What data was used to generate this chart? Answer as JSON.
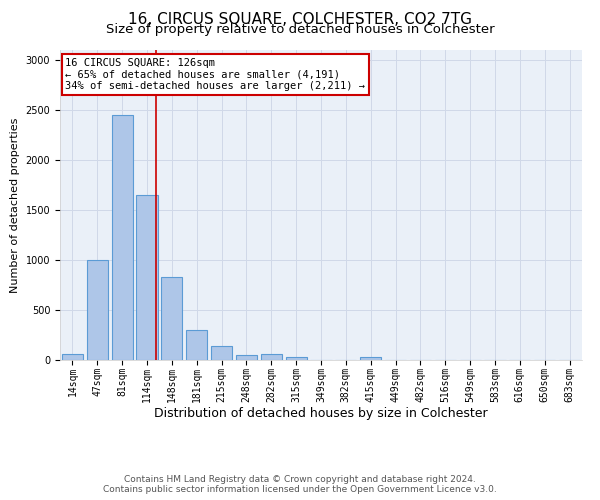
{
  "title": "16, CIRCUS SQUARE, COLCHESTER, CO2 7TG",
  "subtitle": "Size of property relative to detached houses in Colchester",
  "xlabel": "Distribution of detached houses by size in Colchester",
  "ylabel": "Number of detached properties",
  "categories": [
    "14sqm",
    "47sqm",
    "81sqm",
    "114sqm",
    "148sqm",
    "181sqm",
    "215sqm",
    "248sqm",
    "282sqm",
    "315sqm",
    "349sqm",
    "382sqm",
    "415sqm",
    "449sqm",
    "482sqm",
    "516sqm",
    "549sqm",
    "583sqm",
    "616sqm",
    "650sqm",
    "683sqm"
  ],
  "values": [
    60,
    1000,
    2450,
    1650,
    830,
    300,
    140,
    50,
    60,
    30,
    0,
    0,
    30,
    0,
    0,
    0,
    0,
    0,
    0,
    0,
    0
  ],
  "bar_color": "#aec6e8",
  "bar_edge_color": "#5b9bd5",
  "bar_edge_width": 0.8,
  "vline_color": "#cc0000",
  "annotation_text": "16 CIRCUS SQUARE: 126sqm\n← 65% of detached houses are smaller (4,191)\n34% of semi-detached houses are larger (2,211) →",
  "annotation_box_color": "#cc0000",
  "ylim": [
    0,
    3100
  ],
  "yticks": [
    0,
    500,
    1000,
    1500,
    2000,
    2500,
    3000
  ],
  "grid_color": "#d0d8e8",
  "bg_color": "#eaf0f8",
  "footer1": "Contains HM Land Registry data © Crown copyright and database right 2024.",
  "footer2": "Contains public sector information licensed under the Open Government Licence v3.0.",
  "title_fontsize": 11,
  "subtitle_fontsize": 9.5,
  "xlabel_fontsize": 9,
  "ylabel_fontsize": 8,
  "tick_fontsize": 7,
  "annotation_fontsize": 7.5,
  "footer_fontsize": 6.5
}
